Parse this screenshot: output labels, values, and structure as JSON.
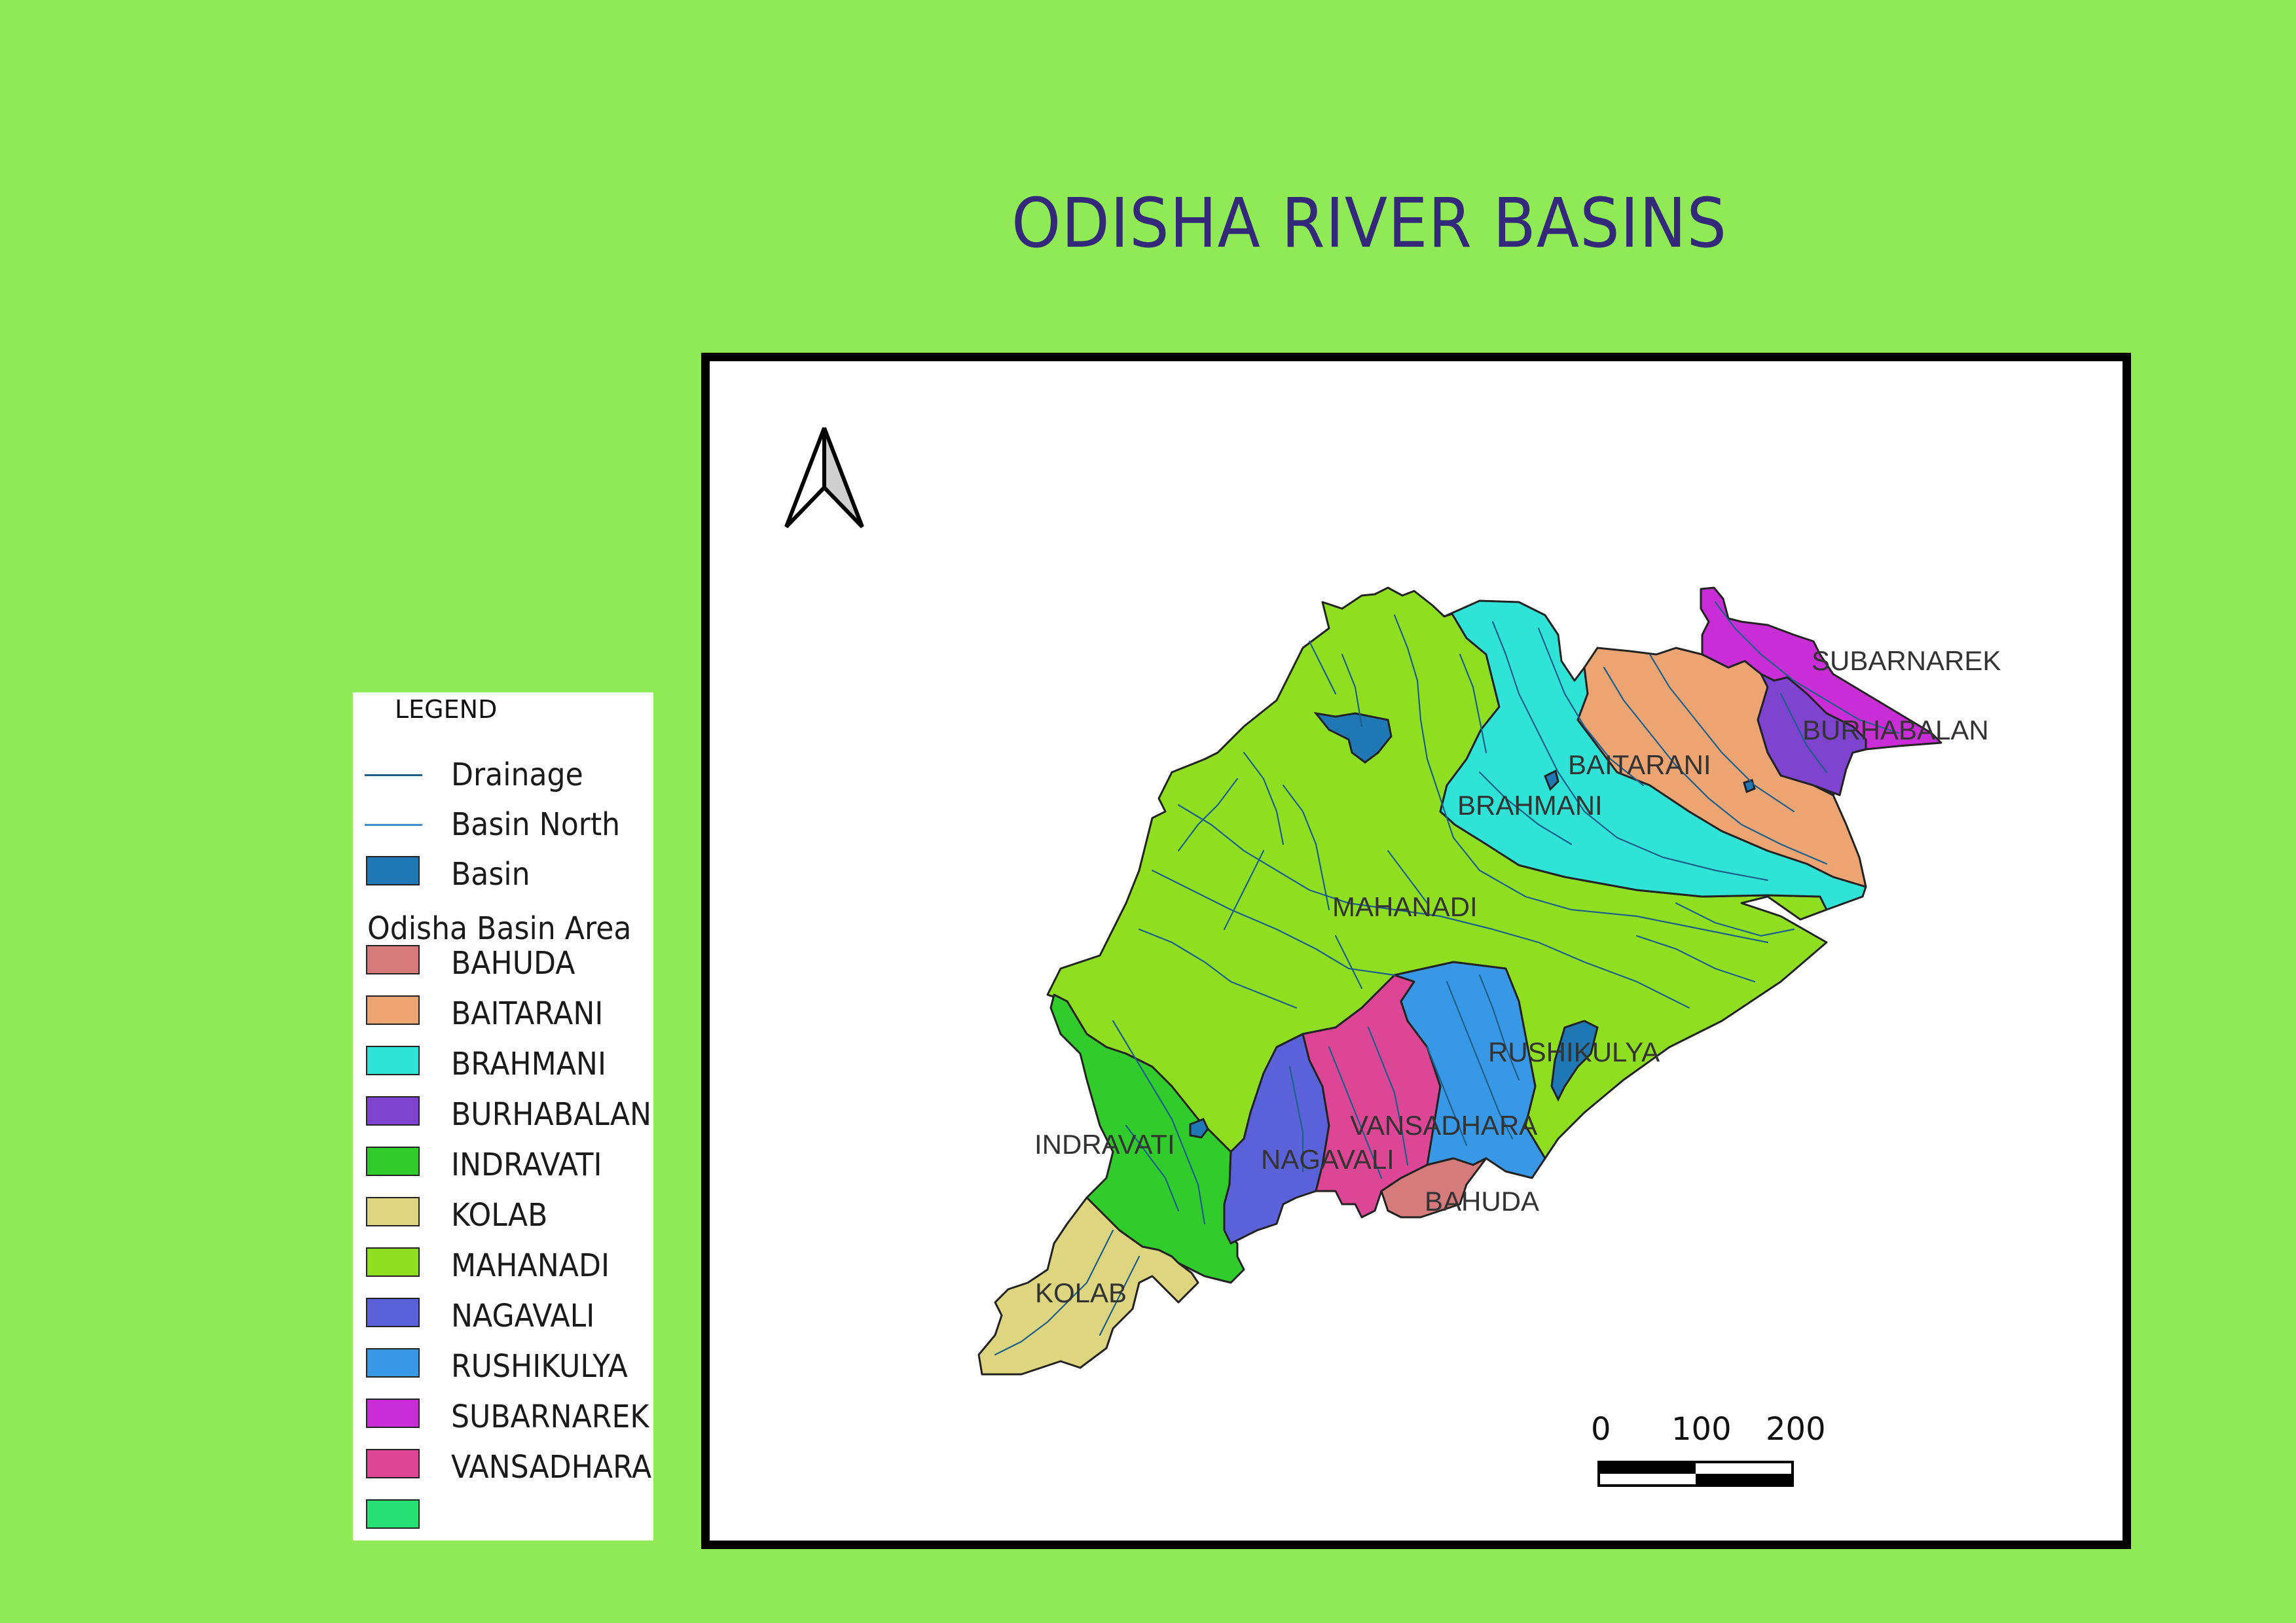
{
  "title": "ODISHA RIVER BASINS",
  "legend": {
    "heading": "LEGEND",
    "layers": [
      {
        "label": "Drainage",
        "color": "#1d5f8a",
        "kind": "line"
      },
      {
        "label": "Basin North",
        "color": "#3d8fd0",
        "kind": "line"
      },
      {
        "label": "Basin",
        "color": "#1f77b4",
        "kind": "fill"
      }
    ],
    "section_title": "Odisha Basin Area",
    "basins": [
      {
        "label": "BAHUDA",
        "color": "#d67b7b"
      },
      {
        "label": "BAITARANI",
        "color": "#eba472"
      },
      {
        "label": "BRAHMANI",
        "color": "#2fe3d6"
      },
      {
        "label": "BURHABALAN",
        "color": "#7f44cf"
      },
      {
        "label": "INDRAVATI",
        "color": "#31cc2b"
      },
      {
        "label": "KOLAB",
        "color": "#ddd57f"
      },
      {
        "label": "MAHANADI",
        "color": "#8fdf20"
      },
      {
        "label": "NAGAVALI",
        "color": "#5b62d9"
      },
      {
        "label": "RUSHIKULYA",
        "color": "#3998e6"
      },
      {
        "label": "SUBARNAREK",
        "color": "#c92ed6"
      },
      {
        "label": "VANSADHARA",
        "color": "#dd4595"
      },
      {
        "label": "",
        "color": "#26e073"
      }
    ]
  },
  "map": {
    "basin_labels": {
      "subarnarek": "SUBARNAREK",
      "burhabalan": "BURHABALAN",
      "baitarani": "BAITARANI",
      "brahmani": "BRAHMANI",
      "mahanadi": "MAHANADI",
      "rushikulya": "RUSHIKULYA",
      "vansadhara": "VANSADHARA",
      "indravati": "INDRAVATI",
      "nagavali": "NAGAVALI",
      "bahuda": "BAHUDA",
      "kolab": "KOLAB"
    },
    "north_arrow": "north-arrow-icon",
    "scale_bar": {
      "ticks": [
        "0",
        "100",
        "200"
      ]
    }
  }
}
